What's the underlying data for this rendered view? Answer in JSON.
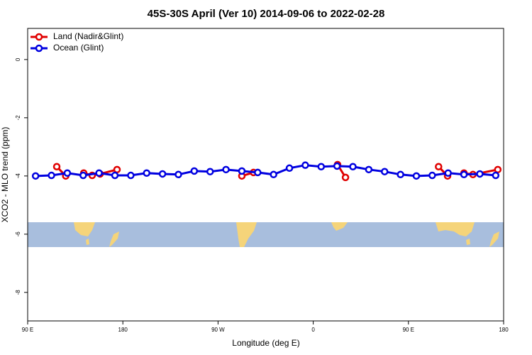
{
  "chart_data": {
    "type": "line",
    "title": "45S-30S April (Ver 10)   2014-09-06 to 2022-02-28",
    "x_label": "Longitude (deg E)",
    "y_label": "XCO2 - MLO trend (ppm)",
    "xlim": [
      90,
      540
    ],
    "xticks": [
      {
        "value": 90,
        "label": "90 E"
      },
      180,
      {
        "value": 270,
        "label": "90 W"
      },
      {
        "value": 360,
        "label": "0"
      },
      {
        "value": 450,
        "label": "90 E"
      },
      {
        "value": 540,
        "label": "180"
      }
    ],
    "ylim": [
      -8.98,
      1.07
    ],
    "yticks": [
      0,
      -2,
      -4,
      -6,
      -8
    ],
    "legend": "top-left",
    "series": [
      {
        "name": "Land (Nadir&Glint)",
        "color": "#e00000",
        "x": [
          117.5,
          126,
          null,
          143,
          151,
          158.5,
          174.5,
          null,
          292.5,
          303.5,
          null,
          383,
          390.5,
          null,
          478.5,
          487,
          null,
          502.5,
          511,
          534.5
        ],
        "values": [
          -3.68,
          -4.0,
          null,
          -3.9,
          -3.98,
          -3.93,
          -3.78,
          null,
          -4.0,
          -3.88,
          null,
          -3.61,
          -4.05,
          null,
          -3.68,
          -4.0,
          null,
          -3.9,
          -3.95,
          -3.78
        ]
      },
      {
        "name": "Ocean (Glint)",
        "color": "#0000e0",
        "x": [
          97.5,
          112.5,
          127.5,
          142.5,
          157.5,
          172.5,
          187.5,
          202.5,
          217.5,
          232.5,
          247.5,
          262.5,
          277.5,
          292.5,
          307.5,
          322.5,
          337.5,
          352.5,
          367.5,
          382.5,
          397.5,
          412.5,
          427.5,
          442.5,
          457.5,
          472.5,
          487.5,
          502.5,
          517.5,
          532.5
        ],
        "values": [
          -4.0,
          -3.98,
          -3.9,
          -3.98,
          -3.9,
          -3.98,
          -3.98,
          -3.9,
          -3.93,
          -3.95,
          -3.83,
          -3.85,
          -3.78,
          -3.83,
          -3.88,
          -3.95,
          -3.73,
          -3.63,
          -3.68,
          -3.66,
          -3.68,
          -3.78,
          -3.85,
          -3.95,
          -4.0,
          -3.98,
          -3.9,
          -3.95,
          -3.93,
          -3.98
        ]
      }
    ]
  }
}
